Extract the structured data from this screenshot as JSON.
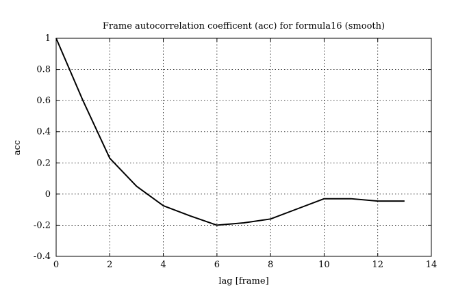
{
  "chart_data": {
    "type": "line",
    "title": "Frame autocorrelation coefficent (acc) for formula16 (smooth)",
    "xlabel": "lag [frame]",
    "ylabel": "acc",
    "xlim": [
      0,
      14
    ],
    "ylim": [
      -0.4,
      1
    ],
    "xticks": [
      0,
      2,
      4,
      6,
      8,
      10,
      12,
      14
    ],
    "yticks": [
      -0.4,
      -0.2,
      0,
      0.2,
      0.4,
      0.6,
      0.8,
      1
    ],
    "grid": true,
    "series": [
      {
        "x": [
          0,
          1,
          2,
          3,
          4,
          5,
          6,
          7,
          8,
          9,
          10,
          11,
          12,
          13
        ],
        "y": [
          1.0,
          0.6,
          0.23,
          0.05,
          -0.075,
          -0.14,
          -0.2,
          -0.185,
          -0.16,
          -0.095,
          -0.03,
          -0.03,
          -0.045,
          -0.045
        ]
      }
    ]
  }
}
